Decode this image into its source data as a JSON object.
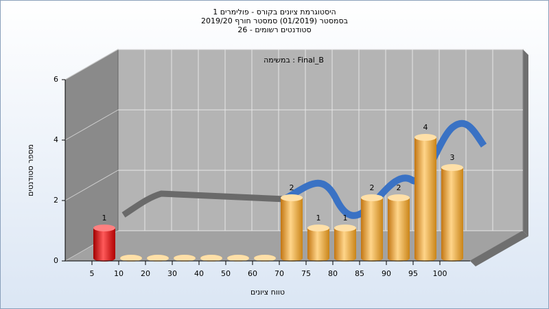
{
  "chart_data": {
    "type": "bar3d",
    "title_lines": [
      "היסטוגרמת ציונים בקורס - פולימרים 1",
      "בסמסטר (01/2019) סמסטר חורף 2019/20",
      "סטודנטים רשומים - 26"
    ],
    "annotation": "במשימה : Final_B",
    "x_label": "טווח ציונים",
    "y_label": "מספר סטודנטים",
    "categories": [
      "5",
      "10",
      "20",
      "30",
      "40",
      "50",
      "60",
      "70",
      "75",
      "80",
      "85",
      "90",
      "95",
      "100"
    ],
    "values": [
      1,
      0,
      0,
      0,
      0,
      0,
      0,
      2,
      1,
      1,
      2,
      2,
      4,
      3
    ],
    "colors": [
      "red",
      "orange",
      "orange",
      "orange",
      "orange",
      "orange",
      "orange",
      "orange",
      "orange",
      "orange",
      "orange",
      "orange",
      "orange",
      "orange"
    ],
    "ylim": [
      0,
      6
    ],
    "yticks": [
      0,
      2,
      4,
      6
    ],
    "grid": true
  }
}
